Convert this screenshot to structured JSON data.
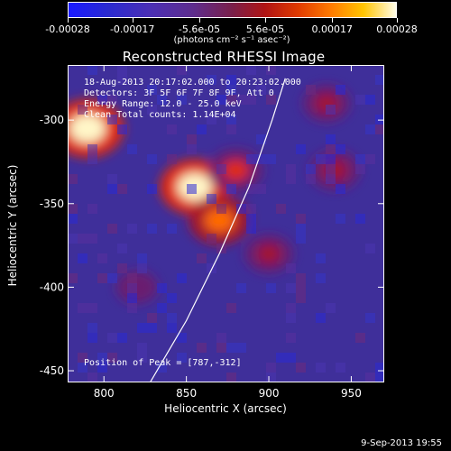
{
  "colorbar": {
    "tick_labels": [
      "-0.00028",
      "-0.00017",
      "-5.6e-05",
      "5.6e-05",
      "0.00017",
      "0.00028"
    ],
    "units": "(photons cm⁻² s⁻¹ asec⁻²)",
    "range": [
      -0.00028,
      0.00028
    ]
  },
  "chart_data": {
    "type": "heatmap",
    "title": "Reconstructed RHESSI Image",
    "xlabel": "Heliocentric X (arcsec)",
    "ylabel": "Heliocentric Y (arcsec)",
    "xlim": [
      778,
      970
    ],
    "ylim": [
      -457,
      -267
    ],
    "x_ticks": [
      800,
      850,
      900,
      950
    ],
    "y_ticks": [
      -300,
      -350,
      -400,
      -450
    ],
    "limb_curve": [
      [
        828,
        -457
      ],
      [
        850,
        -420
      ],
      [
        870,
        -380
      ],
      [
        888,
        -340
      ],
      [
        902,
        -300
      ],
      [
        910,
        -275
      ]
    ],
    "bright_regions": [
      {
        "x": 790,
        "y": -305,
        "intensity": 0.00028
      },
      {
        "x": 855,
        "y": -340,
        "intensity": 0.00026
      },
      {
        "x": 870,
        "y": -360,
        "intensity": 0.0002
      },
      {
        "x": 880,
        "y": -330,
        "intensity": 0.00015
      },
      {
        "x": 940,
        "y": -330,
        "intensity": 0.00012
      },
      {
        "x": 935,
        "y": -290,
        "intensity": 0.0001
      },
      {
        "x": 900,
        "y": -380,
        "intensity": 0.00011
      },
      {
        "x": 820,
        "y": -400,
        "intensity": 6e-05
      }
    ],
    "annotations": [
      "18-Aug-2013 20:17:02.000 to 20:23:02.000",
      "Detectors: 3F 5F 6F 7F 8F 9F, Att 0",
      "Energy Range: 12.0 - 25.0 keV",
      "Clean    Total counts: 1.14E+04"
    ],
    "peak_label": "Position of Peak = [787,-312]"
  },
  "footer": {
    "date": "9-Sep-2013 19:55"
  }
}
